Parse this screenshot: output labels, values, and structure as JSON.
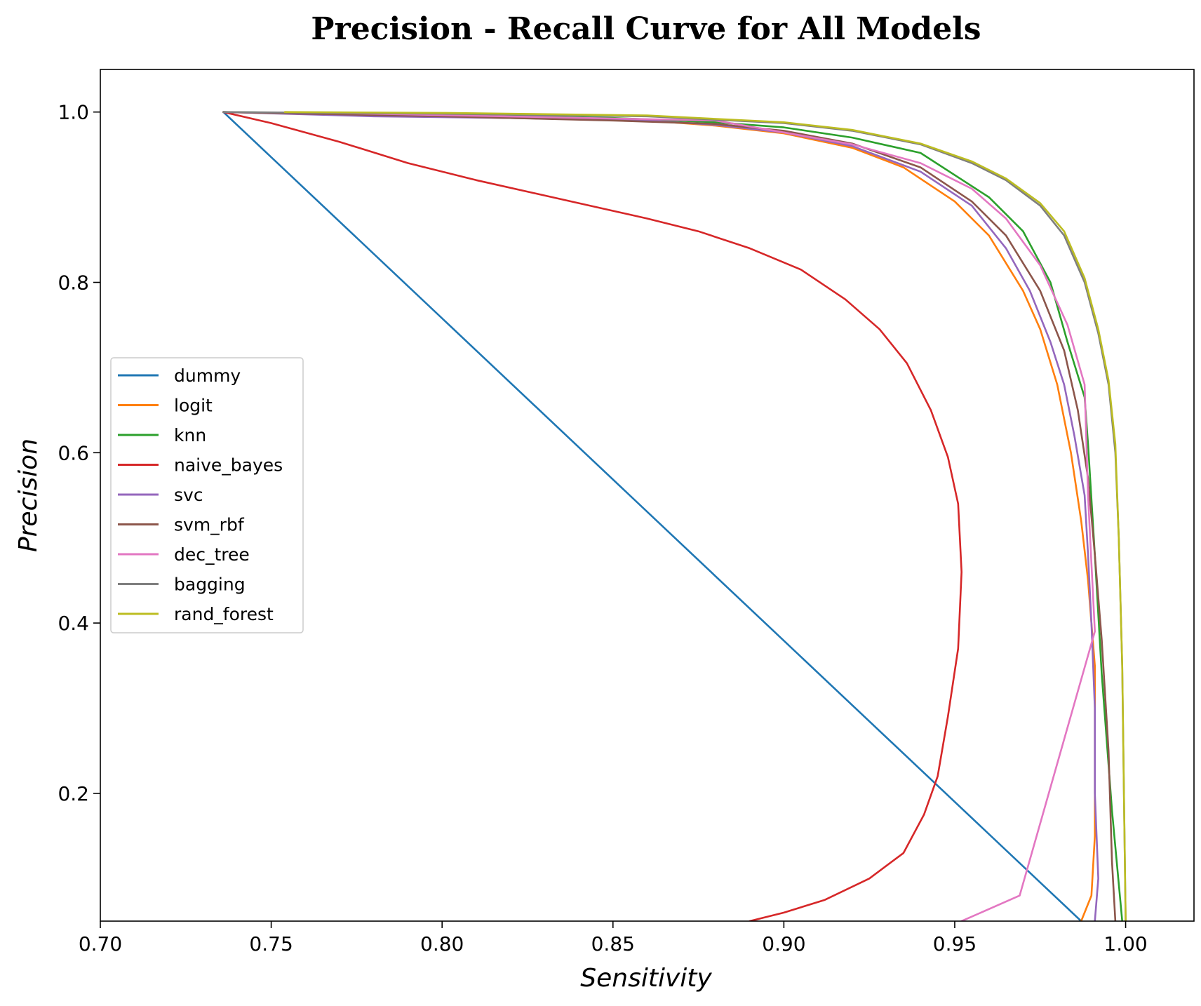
{
  "chart_data": {
    "type": "line",
    "title": "Precision - Recall Curve for All Models",
    "xlabel": "Sensitivity",
    "ylabel": "Precision",
    "xlim": [
      0.7,
      1.02
    ],
    "ylim": [
      0.05,
      1.05
    ],
    "xticks": [
      0.7,
      0.75,
      0.8,
      0.85,
      0.9,
      0.95,
      1.0
    ],
    "xtick_labels": [
      "0.70",
      "0.75",
      "0.80",
      "0.85",
      "0.90",
      "0.95",
      "1.00"
    ],
    "yticks": [
      0.2,
      0.4,
      0.6,
      0.8,
      1.0
    ],
    "ytick_labels": [
      "0.2",
      "0.4",
      "0.6",
      "0.8",
      "1.0"
    ],
    "grid": false,
    "legend_position": "center-left",
    "series": [
      {
        "name": "dummy",
        "color": "#1f77b4",
        "x": [
          0.736,
          0.987
        ],
        "y": [
          1.0,
          0.05
        ]
      },
      {
        "name": "logit",
        "color": "#ff7f0e",
        "x": [
          0.736,
          0.78,
          0.82,
          0.86,
          0.88,
          0.9,
          0.92,
          0.935,
          0.95,
          0.96,
          0.97,
          0.975,
          0.98,
          0.984,
          0.987,
          0.989,
          0.99,
          0.991,
          0.991,
          0.991,
          0.99,
          0.987
        ],
        "y": [
          1.0,
          0.996,
          0.993,
          0.99,
          0.984,
          0.975,
          0.958,
          0.935,
          0.895,
          0.855,
          0.79,
          0.745,
          0.68,
          0.6,
          0.52,
          0.45,
          0.4,
          0.35,
          0.25,
          0.15,
          0.08,
          0.05
        ]
      },
      {
        "name": "knn",
        "color": "#2ca02c",
        "x": [
          0.736,
          0.8,
          0.85,
          0.88,
          0.9,
          0.92,
          0.94,
          0.96,
          0.97,
          0.978,
          0.983,
          0.988,
          0.989,
          0.991,
          0.993,
          0.996,
          0.999
        ],
        "y": [
          1.0,
          0.997,
          0.993,
          0.988,
          0.982,
          0.97,
          0.952,
          0.9,
          0.86,
          0.8,
          0.73,
          0.665,
          0.61,
          0.48,
          0.34,
          0.18,
          0.05
        ]
      },
      {
        "name": "naive_bayes",
        "color": "#d62728",
        "x": [
          0.736,
          0.75,
          0.77,
          0.79,
          0.81,
          0.84,
          0.86,
          0.875,
          0.89,
          0.905,
          0.918,
          0.928,
          0.936,
          0.943,
          0.948,
          0.951,
          0.952,
          0.951,
          0.948,
          0.945,
          0.941,
          0.935,
          0.925,
          0.912,
          0.9,
          0.89
        ],
        "y": [
          1.0,
          0.987,
          0.965,
          0.94,
          0.92,
          0.893,
          0.875,
          0.86,
          0.84,
          0.815,
          0.78,
          0.745,
          0.705,
          0.65,
          0.595,
          0.54,
          0.46,
          0.37,
          0.29,
          0.22,
          0.175,
          0.13,
          0.1,
          0.075,
          0.06,
          0.05
        ]
      },
      {
        "name": "svc",
        "color": "#9467bd",
        "x": [
          0.736,
          0.78,
          0.82,
          0.86,
          0.88,
          0.9,
          0.92,
          0.94,
          0.955,
          0.965,
          0.972,
          0.978,
          0.982,
          0.985,
          0.988,
          0.989,
          0.99,
          0.991,
          0.991,
          0.992,
          0.991
        ],
        "y": [
          1.0,
          0.995,
          0.993,
          0.99,
          0.985,
          0.976,
          0.96,
          0.93,
          0.89,
          0.84,
          0.79,
          0.73,
          0.68,
          0.62,
          0.55,
          0.48,
          0.4,
          0.3,
          0.2,
          0.1,
          0.05
        ]
      },
      {
        "name": "svm_rbf",
        "color": "#8c564b",
        "x": [
          0.736,
          0.8,
          0.85,
          0.88,
          0.9,
          0.92,
          0.94,
          0.955,
          0.965,
          0.975,
          0.982,
          0.986,
          0.989,
          0.991,
          0.993,
          0.995,
          0.996,
          0.997
        ],
        "y": [
          1.0,
          0.995,
          0.99,
          0.986,
          0.978,
          0.963,
          0.935,
          0.895,
          0.855,
          0.79,
          0.72,
          0.65,
          0.57,
          0.48,
          0.38,
          0.25,
          0.12,
          0.05
        ]
      },
      {
        "name": "dec_tree",
        "color": "#e377c2",
        "x": [
          0.754,
          0.88,
          0.92,
          0.94,
          0.955,
          0.965,
          0.975,
          0.983,
          0.988,
          0.989,
          0.99,
          0.991,
          0.969,
          0.952
        ],
        "y": [
          1.0,
          0.99,
          0.962,
          0.94,
          0.91,
          0.875,
          0.82,
          0.75,
          0.68,
          0.55,
          0.47,
          0.39,
          0.08,
          0.05
        ]
      },
      {
        "name": "bagging",
        "color": "#7f7f7f",
        "x": [
          0.736,
          0.8,
          0.86,
          0.9,
          0.92,
          0.94,
          0.955,
          0.965,
          0.975,
          0.982,
          0.988,
          0.992,
          0.995,
          0.997,
          0.998,
          0.999,
          1.0
        ],
        "y": [
          1.0,
          0.998,
          0.995,
          0.987,
          0.978,
          0.962,
          0.94,
          0.92,
          0.89,
          0.855,
          0.8,
          0.74,
          0.68,
          0.6,
          0.5,
          0.35,
          0.05
        ]
      },
      {
        "name": "rand_forest",
        "color": "#bcbd22",
        "x": [
          0.754,
          0.8,
          0.86,
          0.9,
          0.92,
          0.94,
          0.955,
          0.965,
          0.975,
          0.982,
          0.988,
          0.992,
          0.995,
          0.997,
          0.998,
          0.999,
          1.0
        ],
        "y": [
          1.0,
          0.999,
          0.996,
          0.988,
          0.979,
          0.963,
          0.942,
          0.922,
          0.893,
          0.86,
          0.805,
          0.745,
          0.685,
          0.61,
          0.5,
          0.35,
          0.05
        ]
      }
    ]
  }
}
